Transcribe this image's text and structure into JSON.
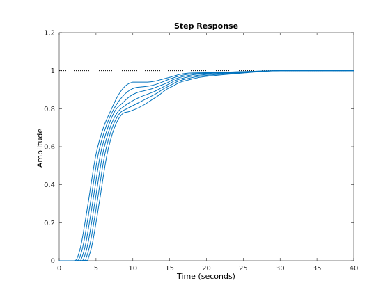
{
  "colors": {
    "series": "#0072BD",
    "axes": "#262626",
    "reference": "#000000",
    "background": "#ffffff"
  },
  "chart_data": {
    "type": "line",
    "title": "Step Response",
    "xlabel": "Time (seconds)",
    "ylabel": "Amplitude",
    "xlim": [
      0,
      40
    ],
    "ylim": [
      0,
      1.2
    ],
    "grid": false,
    "legend": "none",
    "xticks": [
      "0",
      "5",
      "10",
      "15",
      "20",
      "25",
      "30",
      "35",
      "40"
    ],
    "yticks": [
      "0",
      "0.2",
      "0.4",
      "0.6",
      "0.8",
      "1",
      "1.2"
    ],
    "reference_line": {
      "y": 1,
      "style": "dotted"
    },
    "series": [
      {
        "x": [
          0,
          2.0,
          2.5,
          3.0,
          3.5,
          4.0,
          5.0,
          6.0,
          7.0,
          8.0,
          9.0,
          10.0,
          11.0,
          12.0,
          13.0,
          14.0,
          15.0,
          17.0,
          20.0,
          25.0,
          30.0,
          40.0
        ],
        "values": [
          0,
          0,
          0.02,
          0.09,
          0.2,
          0.32,
          0.56,
          0.7,
          0.79,
          0.87,
          0.92,
          0.94,
          0.94,
          0.94,
          0.945,
          0.955,
          0.965,
          0.985,
          0.99,
          0.995,
          1.0,
          1.0
        ]
      },
      {
        "x": [
          0,
          2.3,
          2.8,
          3.3,
          3.8,
          4.3,
          5.3,
          6.3,
          7.3,
          8.3,
          9.3,
          10.3,
          11.3,
          12.3,
          13.3,
          14.3,
          15.3,
          17.3,
          20.0,
          25.0,
          30.0,
          40.0
        ],
        "values": [
          0,
          0,
          0.02,
          0.09,
          0.2,
          0.32,
          0.56,
          0.7,
          0.79,
          0.85,
          0.89,
          0.91,
          0.915,
          0.92,
          0.93,
          0.945,
          0.96,
          0.98,
          0.988,
          0.995,
          1.0,
          1.0
        ]
      },
      {
        "x": [
          0,
          2.6,
          3.1,
          3.6,
          4.1,
          4.6,
          5.6,
          6.6,
          7.6,
          8.6,
          9.6,
          10.6,
          11.6,
          12.6,
          13.6,
          14.6,
          15.6,
          17.6,
          20.0,
          25.0,
          30.0,
          40.0
        ],
        "values": [
          0,
          0,
          0.02,
          0.09,
          0.2,
          0.32,
          0.56,
          0.7,
          0.79,
          0.83,
          0.865,
          0.885,
          0.895,
          0.905,
          0.92,
          0.935,
          0.955,
          0.975,
          0.985,
          0.993,
          1.0,
          1.0
        ]
      },
      {
        "x": [
          0,
          2.9,
          3.4,
          3.9,
          4.4,
          4.9,
          5.9,
          6.9,
          7.9,
          8.9,
          9.9,
          10.9,
          11.9,
          12.9,
          13.9,
          14.9,
          15.9,
          17.9,
          20.0,
          25.0,
          30.0,
          40.0
        ],
        "values": [
          0,
          0,
          0.02,
          0.09,
          0.2,
          0.32,
          0.56,
          0.7,
          0.78,
          0.815,
          0.84,
          0.86,
          0.875,
          0.89,
          0.91,
          0.93,
          0.95,
          0.97,
          0.98,
          0.992,
          1.0,
          1.0
        ]
      },
      {
        "x": [
          0,
          3.2,
          3.7,
          4.2,
          4.7,
          5.2,
          6.2,
          7.2,
          8.2,
          9.2,
          10.2,
          11.2,
          12.2,
          13.2,
          14.2,
          15.2,
          16.2,
          18.2,
          20.0,
          25.0,
          30.0,
          40.0
        ],
        "values": [
          0,
          0,
          0.02,
          0.09,
          0.2,
          0.32,
          0.56,
          0.7,
          0.775,
          0.8,
          0.82,
          0.84,
          0.86,
          0.88,
          0.905,
          0.925,
          0.945,
          0.965,
          0.975,
          0.99,
          1.0,
          1.0
        ]
      },
      {
        "x": [
          0,
          3.5,
          4.0,
          4.5,
          5.0,
          5.5,
          6.5,
          7.5,
          8.5,
          9.5,
          10.5,
          11.5,
          12.5,
          13.5,
          14.5,
          15.5,
          16.5,
          18.5,
          20.0,
          25.0,
          30.0,
          40.0
        ],
        "values": [
          0,
          0,
          0.02,
          0.09,
          0.2,
          0.32,
          0.56,
          0.7,
          0.77,
          0.785,
          0.8,
          0.82,
          0.845,
          0.87,
          0.9,
          0.92,
          0.94,
          0.96,
          0.97,
          0.988,
          1.0,
          1.0
        ]
      }
    ]
  }
}
